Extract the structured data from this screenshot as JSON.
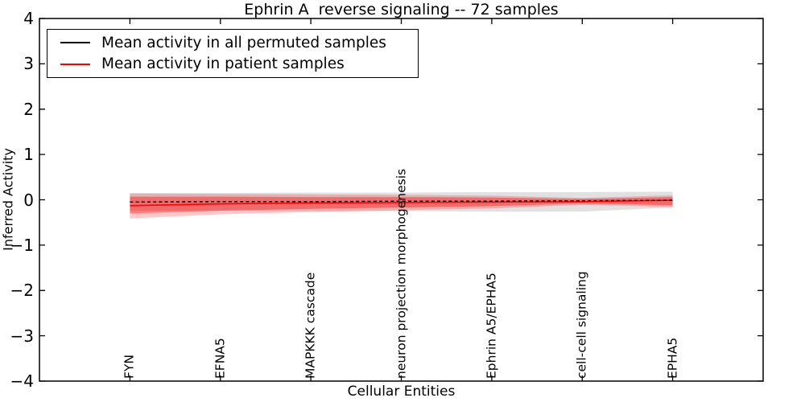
{
  "figure": {
    "title": "Ephrin A  reverse signaling -- 72 samples",
    "xlabel": "Cellular Entities",
    "ylabel": "Inferred Activity"
  },
  "legend": {
    "position": "upper left",
    "items": [
      {
        "label": "Mean activity in all permuted samples",
        "color": "#000000"
      },
      {
        "label": "Mean activity in patient samples",
        "color": "#ff0000"
      }
    ]
  },
  "chart_data": {
    "type": "line",
    "title": "Ephrin A  reverse signaling -- 72 samples",
    "xlabel": "Cellular Entities",
    "ylabel": "Inferred Activity",
    "xlim": [
      -1,
      7
    ],
    "ylim": [
      -4,
      4
    ],
    "grid": false,
    "legend_position": "upper left",
    "yticks": [
      4,
      3,
      2,
      1,
      0,
      -1,
      -2,
      -3,
      -4
    ],
    "ytick_labels": [
      "4",
      "3",
      "2",
      "1",
      "0",
      "−1",
      "−2",
      "−3",
      "−4"
    ],
    "categories": [
      "FYN",
      "EFNA5",
      "MAPKKK cascade",
      "neuron projection morphogenesis",
      "Ephrin A5/EPHA5",
      "cell-cell signaling",
      "EPHA5"
    ],
    "series": [
      {
        "name": "Mean activity in all permuted samples",
        "color": "#000000",
        "line_style": "dashed",
        "values": [
          -0.05,
          -0.04,
          -0.04,
          -0.03,
          -0.03,
          -0.02,
          -0.01
        ],
        "band": {
          "label": "permuted samples std band",
          "upper": [
            0.15,
            0.15,
            0.16,
            0.16,
            0.17,
            0.17,
            0.18
          ],
          "lower": [
            -0.24,
            -0.24,
            -0.25,
            -0.25,
            -0.26,
            -0.26,
            -0.17
          ],
          "color": "#808080",
          "opacity": 0.24
        }
      },
      {
        "name": "Mean activity in patient samples",
        "color": "#ff0000",
        "line_style": "solid",
        "values": [
          -0.13,
          -0.09,
          -0.07,
          -0.06,
          -0.05,
          -0.04,
          -0.01
        ],
        "band_inner": {
          "label": "patient samples inner std band",
          "upper": [
            0.07,
            0.07,
            0.06,
            0.06,
            0.05,
            0.02,
            0.06
          ],
          "lower": [
            -0.3,
            -0.24,
            -0.2,
            -0.17,
            -0.14,
            -0.08,
            -0.12
          ],
          "color": "#ff0000",
          "opacity": 0.38
        },
        "band_outer": {
          "label": "patient samples outer std band",
          "upper": [
            0.14,
            0.13,
            0.12,
            0.11,
            0.09,
            0.04,
            0.1
          ],
          "lower": [
            -0.41,
            -0.32,
            -0.27,
            -0.23,
            -0.19,
            -0.11,
            -0.16
          ],
          "color": "#ff0000",
          "opacity": 0.22
        }
      }
    ]
  }
}
